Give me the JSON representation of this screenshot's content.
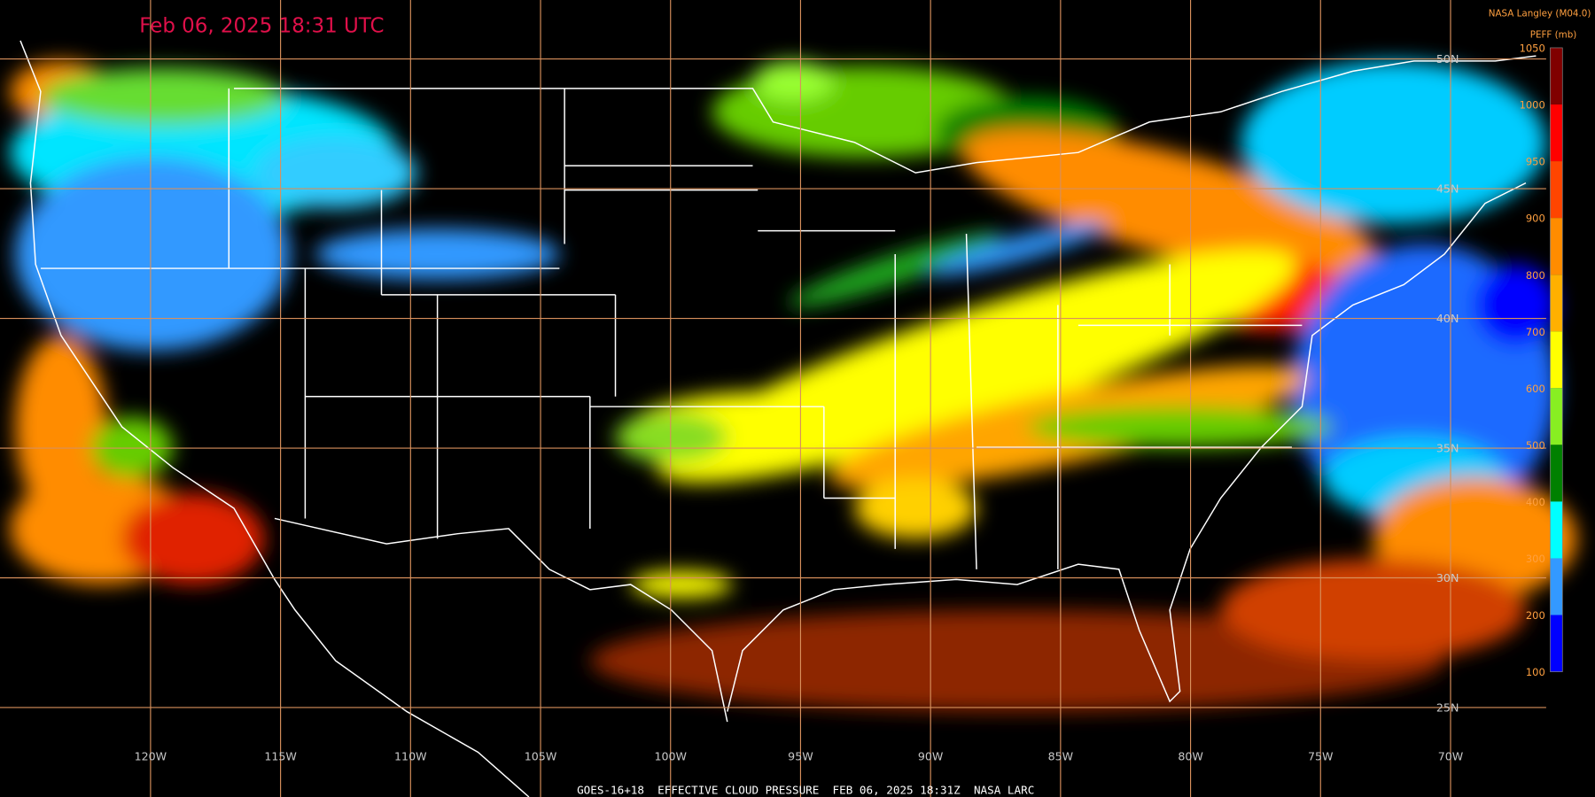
{
  "header": {
    "title": "Feb 06, 2025 18:31 UTC",
    "credit": "NASA Langley (M04.0)"
  },
  "colorbar": {
    "label": "PEFF (mb)",
    "ticks": [
      1050,
      1000,
      950,
      900,
      800,
      700,
      600,
      500,
      400,
      300,
      200,
      100
    ]
  },
  "grid": {
    "lat_labels": [
      "50N",
      "45N",
      "40N",
      "35N",
      "30N",
      "25N"
    ],
    "lon_labels": [
      "120W",
      "115W",
      "110W",
      "105W",
      "100W",
      "95W",
      "90W",
      "85W",
      "80W",
      "75W",
      "70W"
    ]
  },
  "footer": {
    "caption": "GOES-16+18  EFFECTIVE CLOUD PRESSURE  FEB 06, 2025 18:31Z  NASA LARC"
  }
}
